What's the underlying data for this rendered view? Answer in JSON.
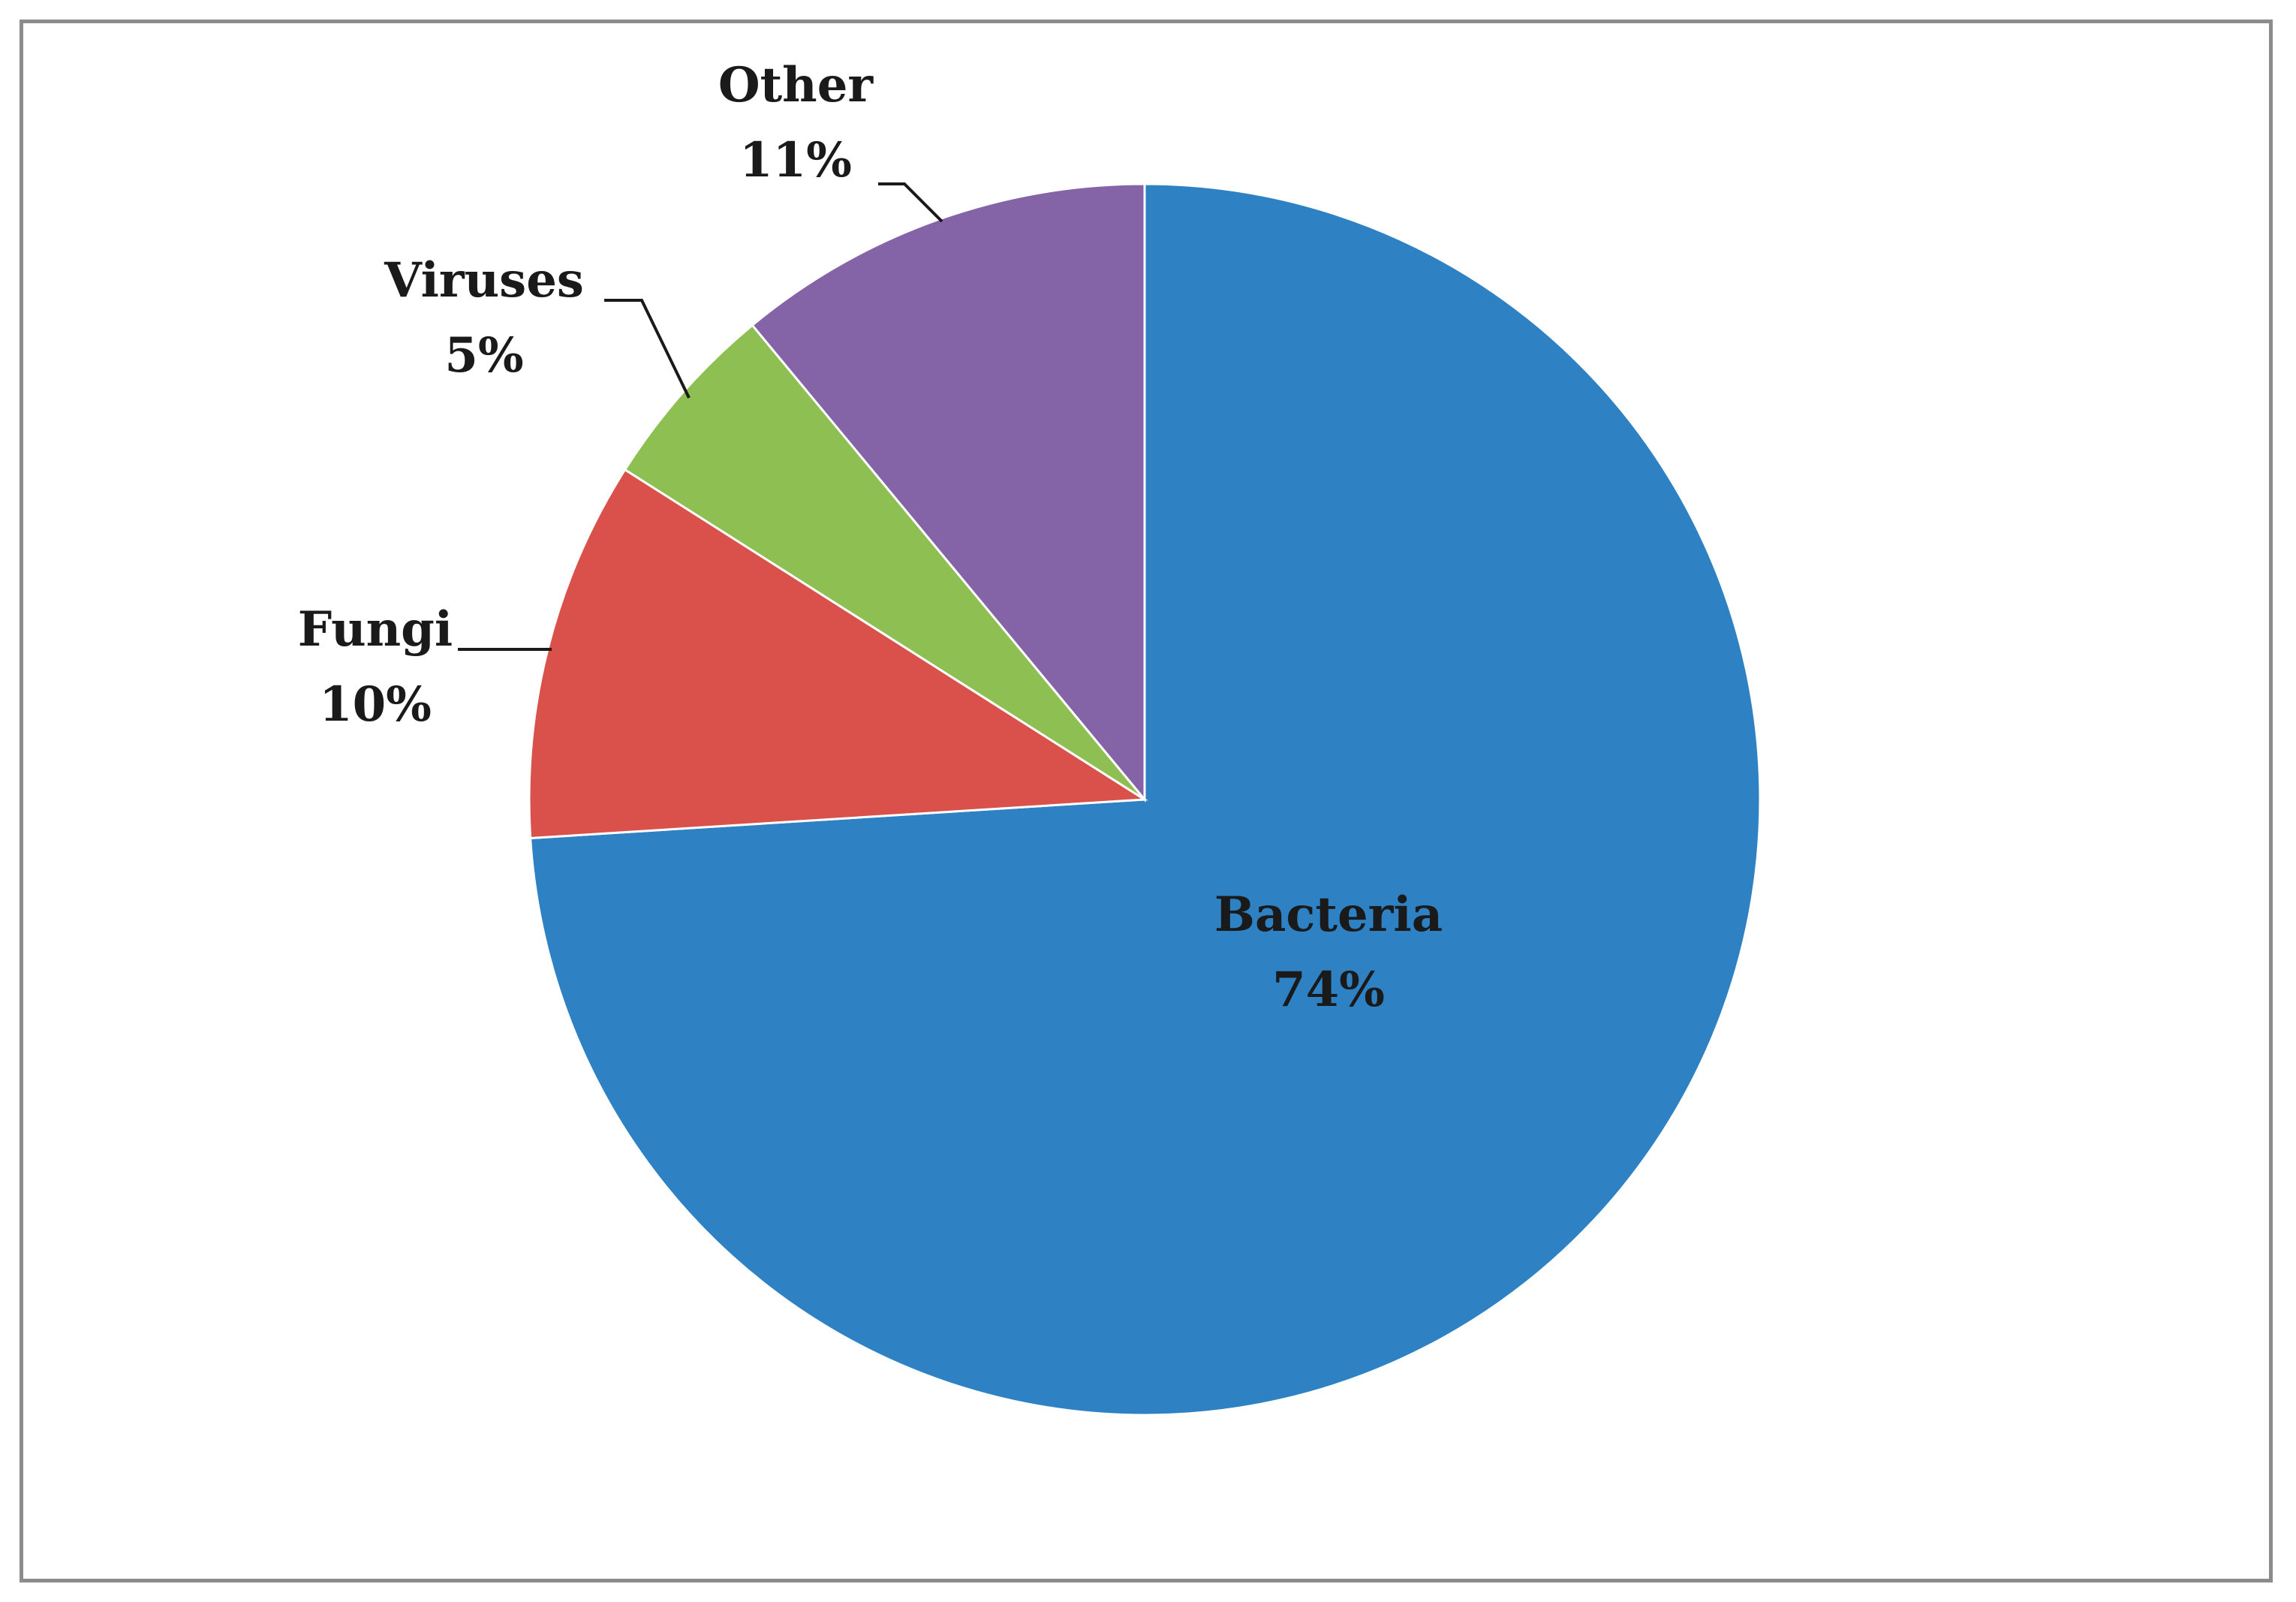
{
  "chart_data": {
    "type": "pie",
    "title": "",
    "categories": [
      "Bacteria",
      "Fungi",
      "Viruses",
      "Other"
    ],
    "values": [
      74,
      10,
      5,
      11
    ],
    "value_labels": [
      "74%",
      "10%",
      "5%",
      "11%"
    ],
    "colors": [
      "#2e82c3",
      "#d9514a",
      "#8dbf52",
      "#8563a7"
    ],
    "start": "top, clockwise",
    "legend": "none"
  }
}
